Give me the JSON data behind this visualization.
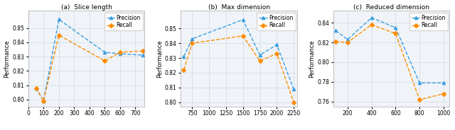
{
  "subplot1": {
    "title": "(a)  Slice length",
    "ylabel": "Performance",
    "precision_x": [
      50,
      100,
      200,
      500,
      600,
      750
    ],
    "precision_y": [
      0.808,
      0.799,
      0.856,
      0.833,
      0.832,
      0.831
    ],
    "recall_x": [
      50,
      100,
      200,
      500,
      600,
      750
    ],
    "recall_y": [
      0.808,
      0.799,
      0.845,
      0.827,
      0.833,
      0.834
    ],
    "xlim": [
      0,
      760
    ],
    "ylim": [
      0.795,
      0.862
    ],
    "xticks": [
      0,
      100,
      200,
      300,
      400,
      500,
      600,
      700
    ],
    "yticks": [
      0.8,
      0.81,
      0.82,
      0.83,
      0.84,
      0.85
    ]
  },
  "subplot2": {
    "title": "(b)  Max dimension",
    "ylabel": "Performance",
    "precision_x": [
      625,
      750,
      1500,
      1750,
      2000,
      2250
    ],
    "precision_y": [
      0.831,
      0.843,
      0.856,
      0.832,
      0.839,
      0.809
    ],
    "recall_x": [
      625,
      750,
      1500,
      1750,
      2000,
      2250
    ],
    "recall_y": [
      0.822,
      0.84,
      0.845,
      0.828,
      0.833,
      0.8
    ],
    "xlim": [
      580,
      2300
    ],
    "ylim": [
      0.797,
      0.862
    ],
    "xticks": [
      750,
      1000,
      1250,
      1500,
      1750,
      2000,
      2250
    ],
    "yticks": [
      0.8,
      0.81,
      0.82,
      0.83,
      0.84,
      0.85
    ]
  },
  "subplot3": {
    "title": "(c)  Reduced dimension",
    "ylabel": "Performance",
    "precision_x": [
      100,
      200,
      400,
      600,
      800,
      1000
    ],
    "precision_y": [
      0.832,
      0.823,
      0.845,
      0.835,
      0.779,
      0.779
    ],
    "recall_x": [
      100,
      200,
      400,
      600,
      800,
      1000
    ],
    "recall_y": [
      0.821,
      0.82,
      0.838,
      0.829,
      0.762,
      0.768
    ],
    "xlim": [
      80,
      1050
    ],
    "ylim": [
      0.755,
      0.852
    ],
    "xticks": [
      200,
      400,
      600,
      800,
      1000
    ],
    "yticks": [
      0.76,
      0.78,
      0.8,
      0.82,
      0.84
    ]
  },
  "precision_color": "#3a9ee0",
  "recall_color": "#ff8c00",
  "precision_marker": "^",
  "recall_marker": "D",
  "line_style": "--",
  "marker_size": 3,
  "line_width": 1.0,
  "legend_fontsize": 5.5,
  "tick_fontsize": 5.5,
  "label_fontsize": 6,
  "title_fontsize": 6.5
}
